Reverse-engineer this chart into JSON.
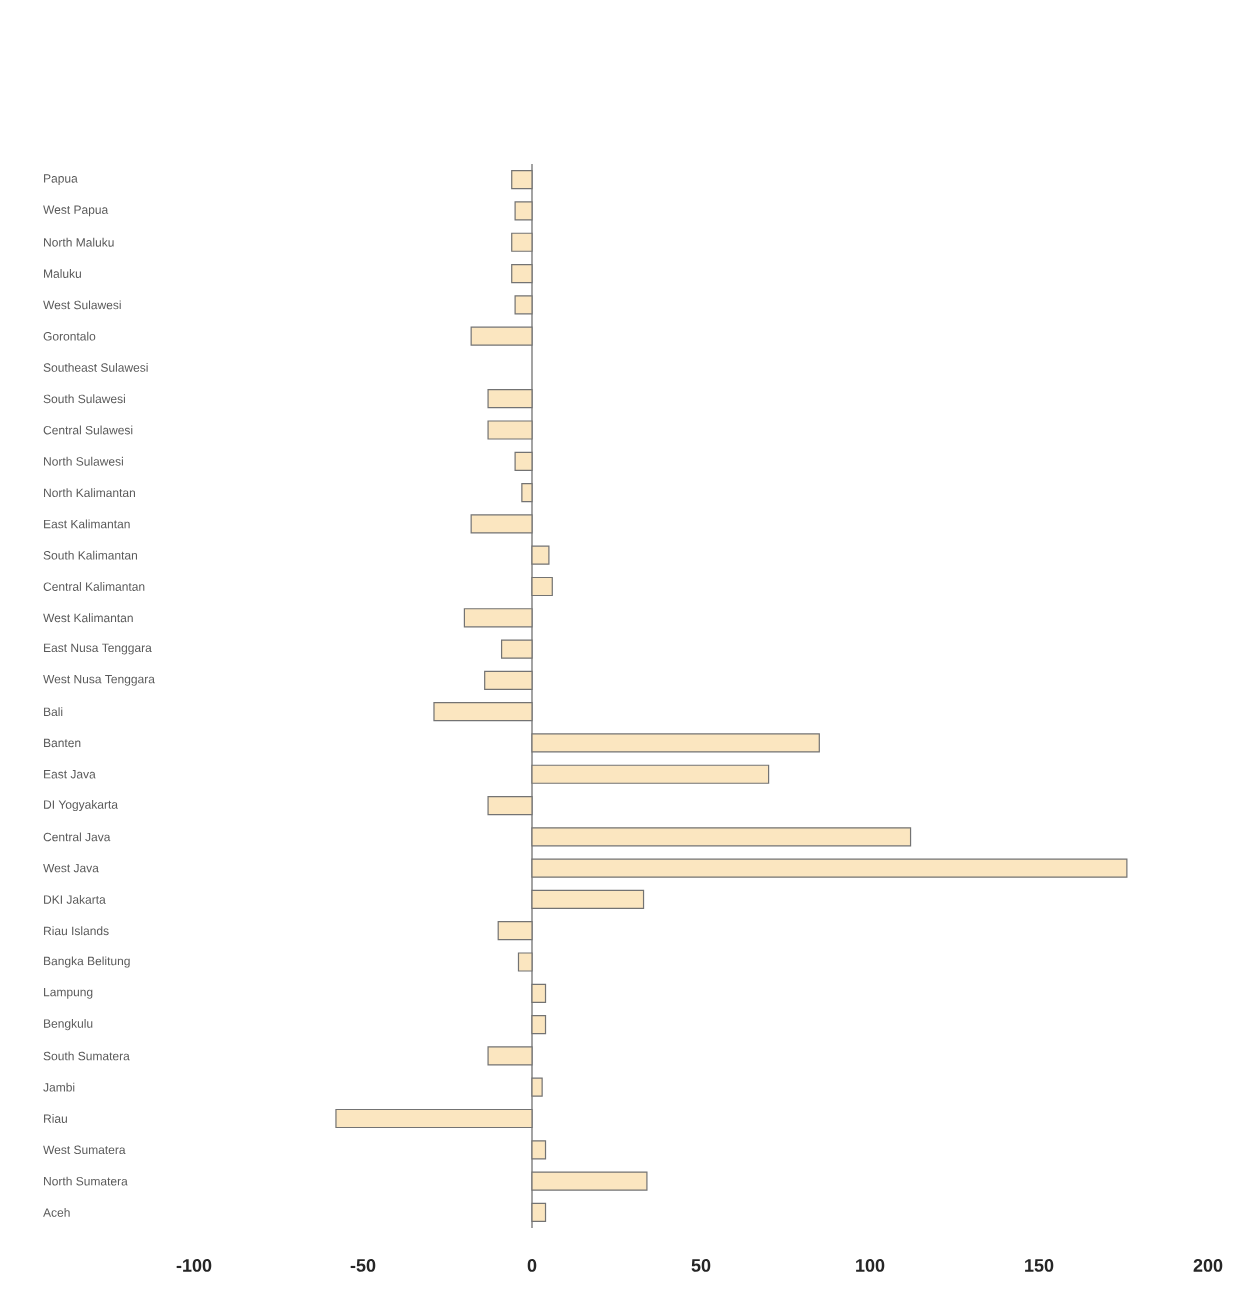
{
  "chart_data": {
    "type": "bar",
    "orientation": "horizontal",
    "categories": [
      "Papua",
      "West Papua",
      "North Maluku",
      "Maluku",
      "West Sulawesi",
      "Gorontalo",
      "Southeast Sulawesi",
      "South Sulawesi",
      "Central Sulawesi",
      "North Sulawesi",
      "North Kalimantan",
      "East Kalimantan",
      "South Kalimantan",
      "Central Kalimantan",
      "West Kalimantan",
      "East Nusa Tenggara",
      "West Nusa Tenggara",
      "Bali",
      "Banten",
      "East Java",
      "DI Yogyakarta",
      "Central Java",
      "West Java",
      "DKI Jakarta",
      "Riau Islands",
      "Bangka Belitung",
      "Lampung",
      "Bengkulu",
      "South Sumatera",
      "Jambi",
      "Riau",
      "West Sumatera",
      "North Sumatera",
      "Aceh"
    ],
    "values": [
      -6,
      -5,
      -6,
      -6,
      -5,
      -18,
      null,
      -13,
      -13,
      -5,
      -3,
      -18,
      5,
      6,
      -20,
      -9,
      -14,
      -29,
      85,
      70,
      -13,
      112,
      176,
      33,
      -10,
      -4,
      4,
      4,
      -13,
      3,
      -58,
      4,
      34,
      4
    ],
    "color": "#fbe6c0",
    "xlim": [
      -100,
      200
    ],
    "xticks": [
      -100,
      -50,
      0,
      50,
      100,
      150,
      200
    ]
  }
}
